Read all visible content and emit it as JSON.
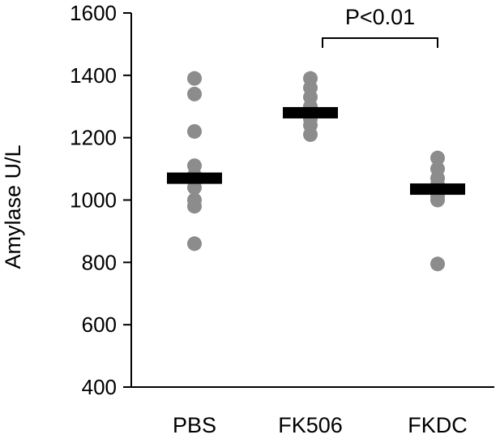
{
  "chart_data": {
    "type": "scatter",
    "title": "",
    "xlabel": "",
    "ylabel": "Amylase U/L",
    "ylim": [
      400,
      1600
    ],
    "yticks": [
      400,
      600,
      800,
      1000,
      1200,
      1400,
      1600
    ],
    "grid": false,
    "categories": [
      "PBS",
      "FK506",
      "FKDC"
    ],
    "series": [
      {
        "category": "PBS",
        "points": [
          1390,
          1340,
          1220,
          1110,
          1080,
          1060,
          1040,
          1000,
          980,
          860
        ],
        "mean": 1070
      },
      {
        "category": "FK506",
        "points": [
          1390,
          1360,
          1330,
          1300,
          1280,
          1260,
          1240,
          1210
        ],
        "mean": 1280
      },
      {
        "category": "FKDC",
        "points": [
          1135,
          1100,
          1070,
          1050,
          1030,
          1010,
          1000,
          795
        ],
        "mean": 1035
      }
    ],
    "point_color": "#8c8c8c",
    "mean_bar_color": "#000000",
    "annotation": {
      "text": "P<0.01",
      "between": [
        "FK506",
        "FKDC"
      ]
    }
  }
}
